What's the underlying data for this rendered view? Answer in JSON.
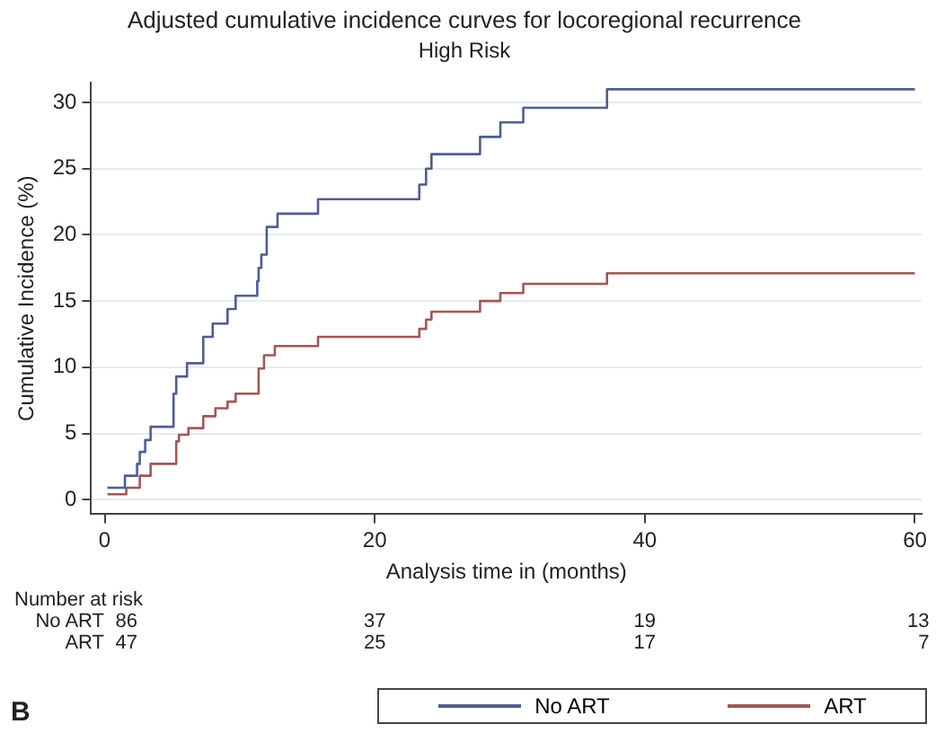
{
  "chart_data": {
    "type": "step",
    "title": "Adjusted cumulative incidence curves for locoregional recurrence",
    "subtitle": "High Risk",
    "xlabel": "Analysis time in (months)",
    "ylabel": "Cumulative Incidence (%)",
    "xlim": [
      -1,
      60.5
    ],
    "xticks": [
      0,
      20,
      40,
      60
    ],
    "ylim": [
      -1.1,
      31.5
    ],
    "yticks": [
      0,
      5,
      10,
      15,
      20,
      25,
      30
    ],
    "grid": "y",
    "legend": "bottom",
    "marker": "none",
    "line_style": "solid",
    "series": [
      {
        "name": "No ART",
        "color": "#4f5d95",
        "x": [
          0.2,
          1.5,
          2.4,
          2.6,
          3.0,
          3.4,
          5.1,
          5.3,
          6.1,
          7.3,
          8.0,
          9.1,
          9.7,
          11.3,
          11.4,
          11.6,
          12.0,
          12.8,
          15.8,
          23.3,
          23.8,
          24.2,
          27.8,
          29.3,
          31.0,
          37.2,
          60
        ],
        "values": [
          0.9,
          1.8,
          2.7,
          3.6,
          4.5,
          5.5,
          8.0,
          9.3,
          10.3,
          12.3,
          13.3,
          14.4,
          15.4,
          16.5,
          17.5,
          18.5,
          20.6,
          21.6,
          22.7,
          23.8,
          25.0,
          26.1,
          27.4,
          28.5,
          29.6,
          31.0,
          31.0
        ]
      },
      {
        "name": "ART",
        "color": "#a35656",
        "x": [
          0.2,
          1.6,
          2.6,
          3.4,
          5.3,
          5.5,
          6.2,
          7.3,
          8.2,
          9.1,
          9.7,
          11.4,
          11.8,
          12.6,
          15.8,
          23.3,
          23.8,
          24.2,
          27.8,
          29.3,
          31.0,
          37.2,
          60
        ],
        "values": [
          0.4,
          0.9,
          1.8,
          2.7,
          4.4,
          4.9,
          5.4,
          6.3,
          6.9,
          7.4,
          8.0,
          9.9,
          10.9,
          11.6,
          12.3,
          12.9,
          13.6,
          14.2,
          15.0,
          15.6,
          16.3,
          17.1,
          17.1
        ]
      }
    ],
    "annotations": [
      "Number at risk",
      "86",
      "37",
      "19",
      "13",
      "47",
      "25",
      "17",
      "7",
      "B"
    ]
  }
}
